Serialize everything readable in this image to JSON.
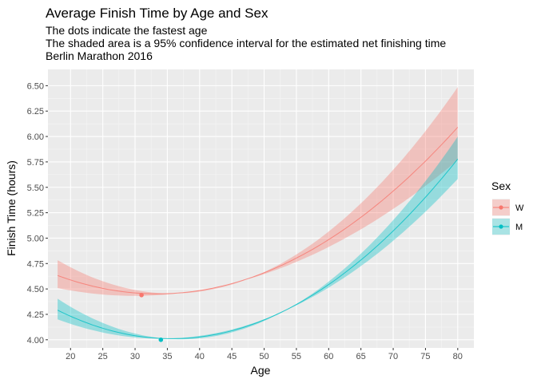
{
  "chart_data": {
    "type": "line",
    "title": "Average Finish Time by Age and Sex",
    "subtitle_lines": [
      "The dots indicate the fastest age",
      "The shaded area is a 95% confidence interval for the estimated net finishing time",
      "Berlin Marathon 2016"
    ],
    "xlabel": "Age",
    "ylabel": "Finish Time (hours)",
    "xlim": [
      16.5,
      82.5
    ],
    "ylim": [
      3.92,
      6.66
    ],
    "x_ticks": [
      20,
      25,
      30,
      35,
      40,
      45,
      50,
      55,
      60,
      65,
      70,
      75,
      80
    ],
    "x_tick_labels": [
      "20",
      "25",
      "30",
      "35",
      "40",
      "45",
      "50",
      "55",
      "60",
      "65",
      "70",
      "75",
      "80"
    ],
    "y_ticks": [
      4.0,
      4.25,
      4.5,
      4.75,
      5.0,
      5.25,
      5.5,
      5.75,
      6.0,
      6.25,
      6.5
    ],
    "y_tick_labels": [
      "4.00",
      "4.25",
      "4.50",
      "4.75",
      "5.00",
      "5.25",
      "5.50",
      "5.75",
      "6.00",
      "6.25",
      "6.50"
    ],
    "grid": true,
    "legend": {
      "title": "Sex",
      "position": "right"
    },
    "series": [
      {
        "name": "W",
        "color": "#F8766D",
        "x": [
          18,
          20,
          25,
          30,
          31,
          35,
          40,
          45,
          50,
          55,
          60,
          65,
          70,
          75,
          80
        ],
        "y": [
          4.66,
          4.59,
          4.49,
          4.44,
          4.44,
          4.45,
          4.49,
          4.56,
          4.67,
          4.81,
          4.99,
          5.21,
          5.46,
          5.75,
          6.09
        ],
        "lower": [
          4.53,
          4.5,
          4.44,
          4.42,
          4.42,
          4.43,
          4.47,
          4.54,
          4.64,
          4.77,
          4.93,
          5.12,
          5.32,
          5.52,
          5.72
        ],
        "upper": [
          4.8,
          4.7,
          4.55,
          4.47,
          4.46,
          4.47,
          4.51,
          4.59,
          4.7,
          4.85,
          5.05,
          5.3,
          5.61,
          5.99,
          6.59
        ],
        "fastest": {
          "x": 31,
          "y": 4.44
        }
      },
      {
        "name": "M",
        "color": "#00BFC4",
        "x": [
          18,
          20,
          25,
          30,
          34,
          35,
          40,
          45,
          50,
          55,
          60,
          65,
          70,
          75,
          80
        ],
        "y": [
          4.33,
          4.24,
          4.09,
          4.02,
          4.0,
          4.0,
          4.02,
          4.08,
          4.19,
          4.35,
          4.56,
          4.82,
          5.1,
          5.41,
          5.73
        ],
        "lower": [
          4.23,
          4.18,
          4.07,
          4.01,
          3.99,
          3.99,
          4.01,
          4.07,
          4.18,
          4.34,
          4.54,
          4.79,
          5.04,
          5.29,
          5.48
        ],
        "upper": [
          4.46,
          4.31,
          4.12,
          4.03,
          4.01,
          4.01,
          4.03,
          4.09,
          4.2,
          4.36,
          4.58,
          4.84,
          5.16,
          5.55,
          6.01
        ],
        "fastest": {
          "x": 34,
          "y": 4.0
        }
      }
    ]
  }
}
